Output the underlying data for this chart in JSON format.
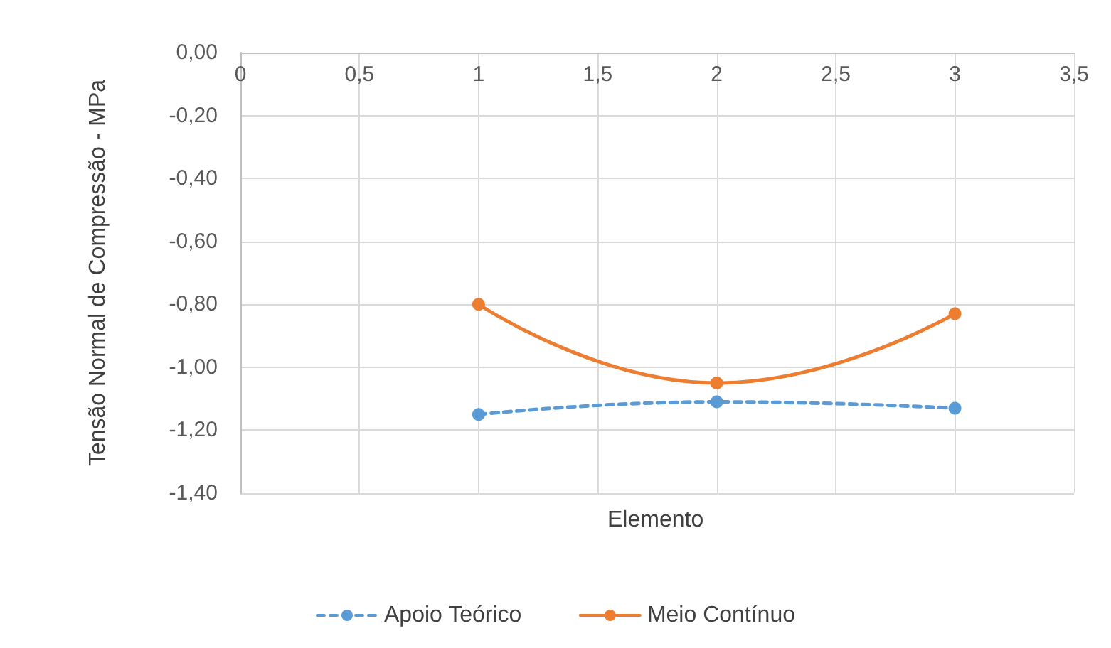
{
  "chart_data": {
    "type": "line",
    "xlabel": "Elemento",
    "ylabel": "Tensão Normal de Compressão - MPa",
    "x": [
      1,
      2,
      3
    ],
    "series": [
      {
        "name": "Apoio Teórico",
        "color": "#5b9bd5",
        "values": [
          -1.15,
          -1.11,
          -1.13
        ],
        "line_style": "dashed"
      },
      {
        "name": "Meio Contínuo",
        "color": "#ed7d31",
        "values": [
          -0.8,
          -1.05,
          -0.83
        ],
        "line_style": "solid"
      }
    ],
    "xlim": [
      0,
      3.5
    ],
    "xticks": [
      0,
      {
        "value": 0.5,
        "label": "0,5"
      },
      1,
      {
        "value": 1.5,
        "label": "1,5"
      },
      2,
      {
        "value": 2.5,
        "label": "2,5"
      },
      3,
      {
        "value": 3.5,
        "label": "3,5"
      }
    ],
    "ylim": [
      -1.4,
      0
    ],
    "yticks": [
      {
        "value": -1.4,
        "label": "-1,40"
      },
      {
        "value": -1.2,
        "label": "-1,20"
      },
      {
        "value": -1,
        "label": "-1,00"
      },
      {
        "value": -0.8,
        "label": "-0,80"
      },
      {
        "value": -0.6,
        "label": "-0,60"
      },
      {
        "value": -0.4,
        "label": "-0,40"
      },
      {
        "value": -0.2,
        "label": "-0,20"
      },
      {
        "value": 0,
        "label": "0,00"
      }
    ],
    "grid": true,
    "legend": "bottom",
    "marker": "circle"
  }
}
